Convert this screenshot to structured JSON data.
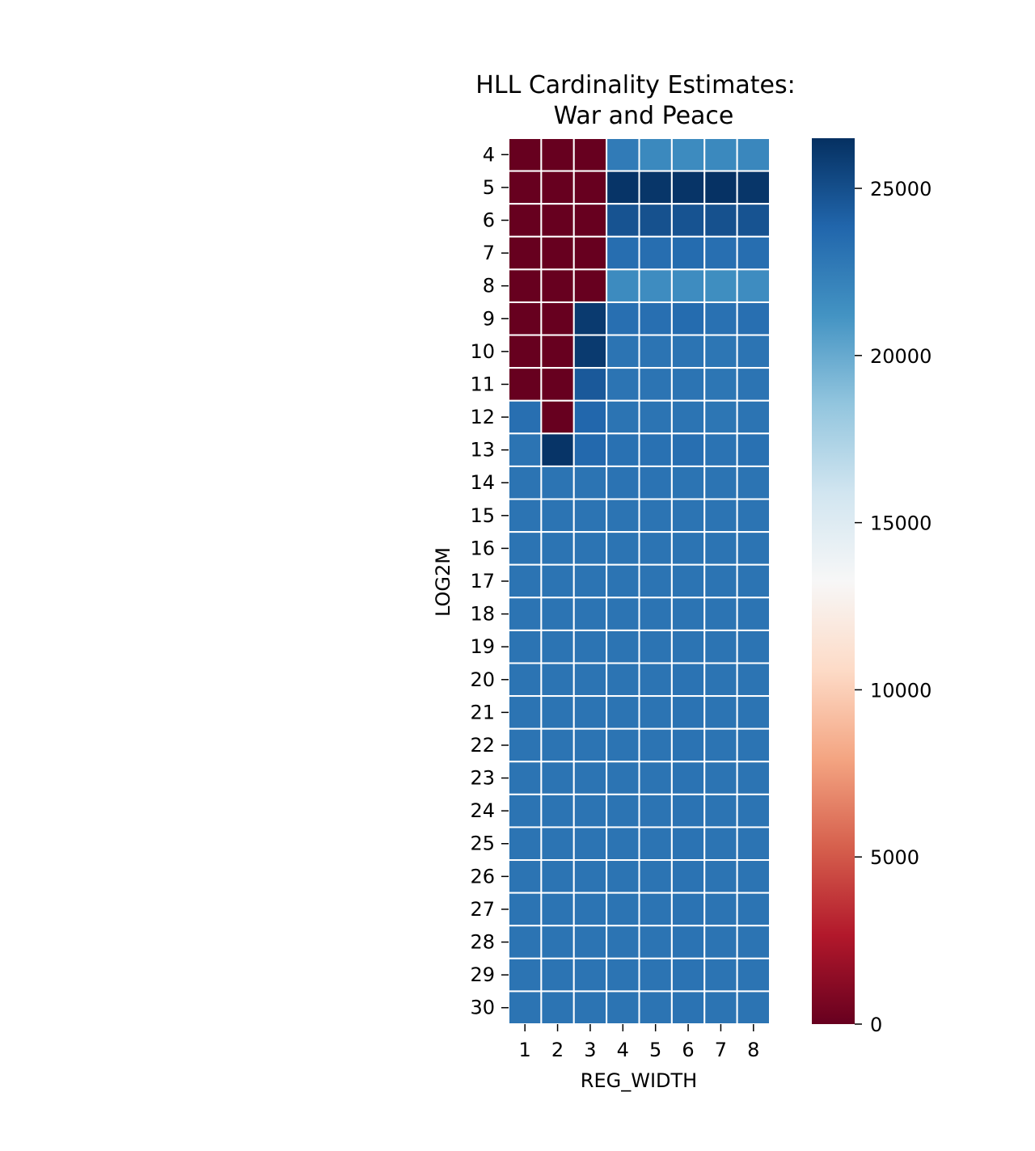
{
  "chart_data": {
    "type": "heatmap",
    "title_lines": [
      "HLL Cardinality Estimates:",
      "War and Peace"
    ],
    "xlabel": "REG_WIDTH",
    "ylabel": "LOG2M",
    "x_categories": [
      "1",
      "2",
      "3",
      "4",
      "5",
      "6",
      "7",
      "8"
    ],
    "y_categories": [
      "4",
      "5",
      "6",
      "7",
      "8",
      "9",
      "10",
      "11",
      "12",
      "13",
      "14",
      "15",
      "16",
      "17",
      "18",
      "19",
      "20",
      "21",
      "22",
      "23",
      "24",
      "25",
      "26",
      "27",
      "28",
      "29",
      "30"
    ],
    "values": [
      [
        0,
        0,
        0,
        22600,
        21800,
        21700,
        21800,
        21900
      ],
      [
        0,
        0,
        0,
        26300,
        26200,
        26300,
        26400,
        26200
      ],
      [
        0,
        0,
        0,
        24800,
        24900,
        24800,
        24900,
        24800
      ],
      [
        0,
        0,
        0,
        23400,
        23400,
        23500,
        23300,
        23400
      ],
      [
        0,
        0,
        0,
        21700,
        21600,
        21600,
        21500,
        21600
      ],
      [
        0,
        0,
        26000,
        23300,
        23300,
        23500,
        23200,
        23300
      ],
      [
        0,
        0,
        26000,
        23000,
        23000,
        23000,
        22900,
        23000
      ],
      [
        0,
        0,
        24500,
        23000,
        23000,
        23000,
        22900,
        23000
      ],
      [
        23300,
        0,
        23800,
        23000,
        23000,
        23000,
        22900,
        23000
      ],
      [
        23000,
        26300,
        23700,
        23200,
        23200,
        23300,
        23100,
        23200
      ],
      [
        23000,
        23000,
        23000,
        23100,
        23100,
        23000,
        23000,
        23000
      ],
      [
        23000,
        23000,
        23000,
        23000,
        23000,
        23000,
        23000,
        23000
      ],
      [
        23000,
        23000,
        23000,
        23000,
        23000,
        23000,
        23000,
        23000
      ],
      [
        23000,
        23000,
        23000,
        23000,
        23000,
        23000,
        23000,
        23000
      ],
      [
        23000,
        23000,
        23000,
        23000,
        23000,
        23000,
        23000,
        23000
      ],
      [
        23000,
        23000,
        23000,
        23000,
        23000,
        23000,
        23000,
        23000
      ],
      [
        23000,
        23000,
        23000,
        23000,
        23000,
        23100,
        23000,
        23000
      ],
      [
        23000,
        23000,
        23000,
        23000,
        23000,
        23100,
        23000,
        23000
      ],
      [
        23000,
        23000,
        23000,
        23000,
        23000,
        23100,
        23000,
        23000
      ],
      [
        23000,
        23000,
        23000,
        23000,
        23000,
        23100,
        23000,
        23000
      ],
      [
        23000,
        23000,
        23000,
        23000,
        23000,
        23100,
        23000,
        23000
      ],
      [
        23000,
        23000,
        23000,
        23000,
        23000,
        23100,
        23000,
        23000
      ],
      [
        23000,
        23000,
        23000,
        23000,
        23000,
        23100,
        23000,
        23000
      ],
      [
        23000,
        23000,
        23000,
        23000,
        23000,
        23100,
        23000,
        23000
      ],
      [
        23000,
        23000,
        23000,
        23000,
        23000,
        23100,
        23000,
        23000
      ],
      [
        23000,
        23000,
        23000,
        23000,
        23000,
        23100,
        23000,
        23000
      ],
      [
        23000,
        23000,
        23000,
        23000,
        23000,
        23100,
        23000,
        23000
      ]
    ],
    "colorscale": "RdBu",
    "vmin": 0,
    "vmax": 26500,
    "colorbar_ticks": [
      0,
      5000,
      10000,
      15000,
      20000,
      25000
    ],
    "cell_border_color": "#ffffff"
  }
}
